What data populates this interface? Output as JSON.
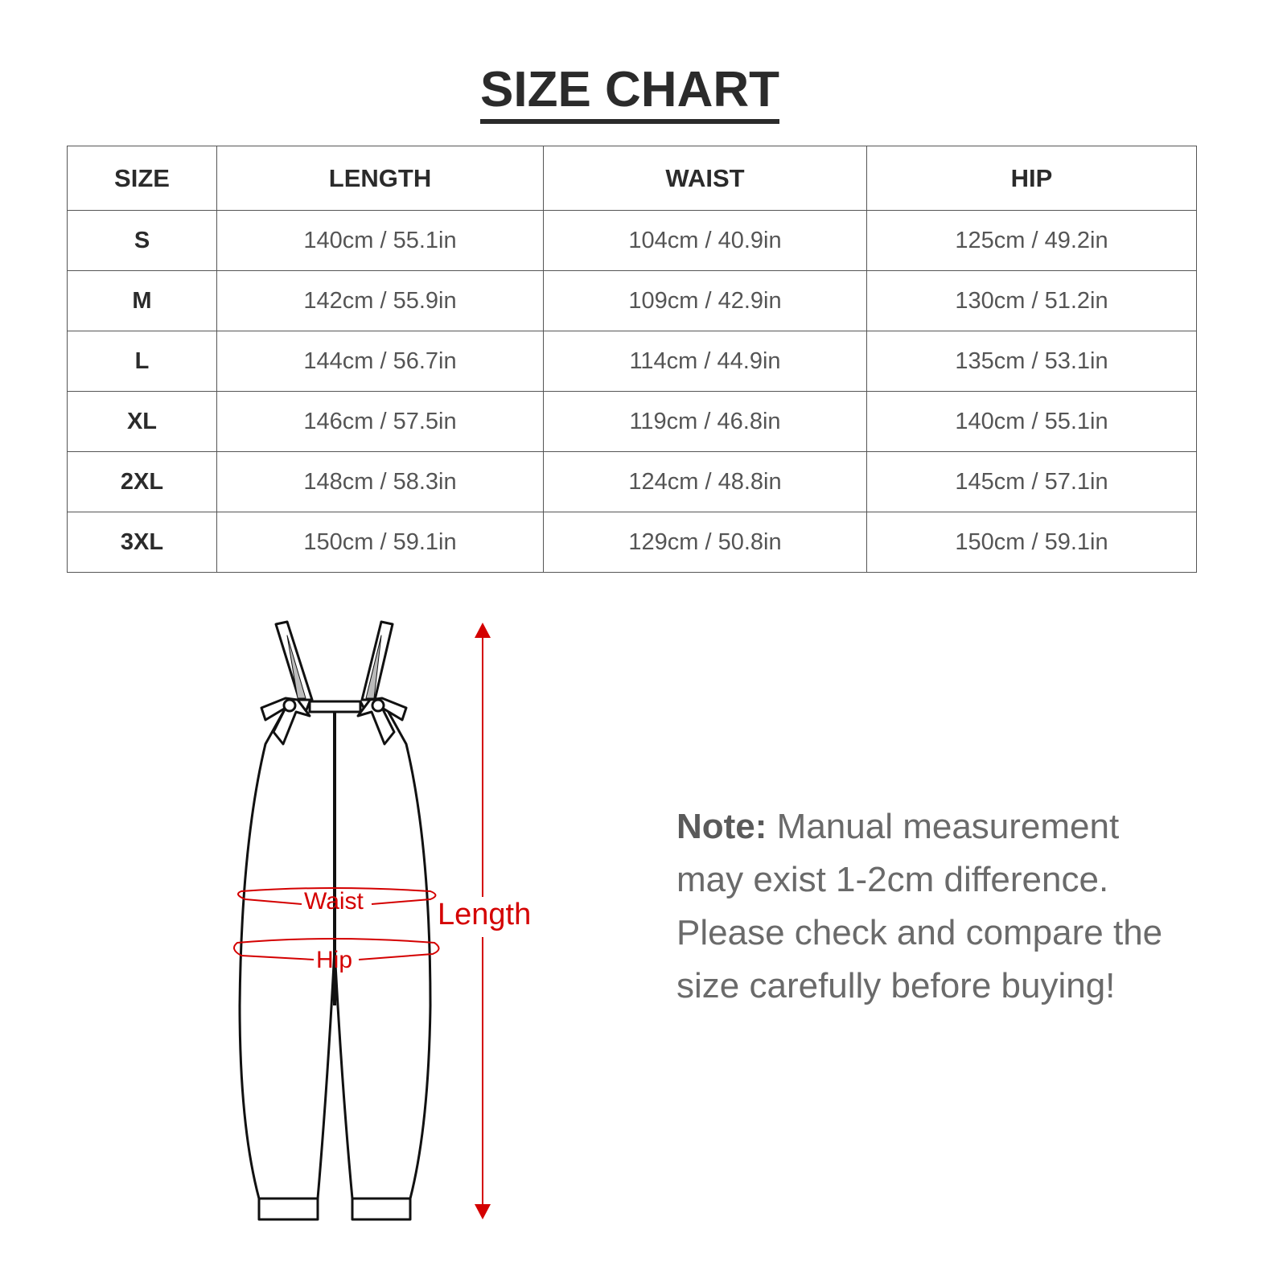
{
  "title": "SIZE CHART",
  "table": {
    "headers": [
      "SIZE",
      "LENGTH",
      "WAIST",
      "HIP"
    ],
    "rows": [
      [
        "S",
        "140cm / 55.1in",
        "104cm / 40.9in",
        "125cm / 49.2in"
      ],
      [
        "M",
        "142cm / 55.9in",
        "109cm / 42.9in",
        "130cm / 51.2in"
      ],
      [
        "L",
        "144cm / 56.7in",
        "114cm / 44.9in",
        "135cm / 53.1in"
      ],
      [
        "XL",
        "146cm / 57.5in",
        "119cm / 46.8in",
        "140cm / 55.1in"
      ],
      [
        "2XL",
        "148cm / 58.3in",
        "124cm / 48.8in",
        "145cm / 57.1in"
      ],
      [
        "3XL",
        "150cm / 59.1in",
        "129cm / 50.8in",
        "150cm / 59.1in"
      ]
    ]
  },
  "diagram": {
    "waist_label": "Waist",
    "hip_label": "Hip",
    "length_label": "Length",
    "accent_color": "#d40000"
  },
  "note": {
    "label": "Note:",
    "text": " Manual measurement may exist 1-2cm difference. Please check and compare the size carefully before buying!"
  }
}
